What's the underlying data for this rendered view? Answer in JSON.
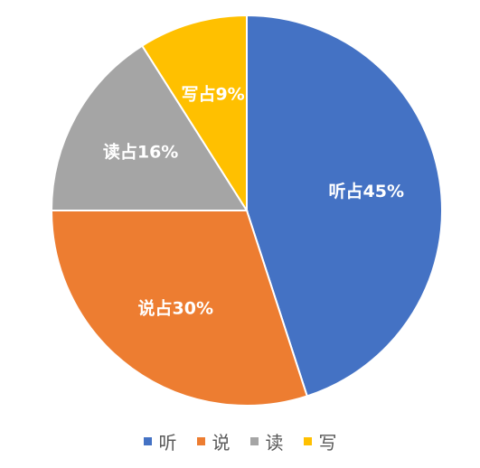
{
  "chart_data": {
    "type": "pie",
    "title": "",
    "series": [
      {
        "values": [
          45,
          30,
          16,
          9
        ]
      }
    ],
    "categories": [
      "听",
      "说",
      "读",
      "写"
    ],
    "slice_labels": [
      "听占45%",
      "说占30%",
      "读占16%",
      "写占9%"
    ],
    "colors": [
      "#4472C4",
      "#ED7D31",
      "#A5A5A5",
      "#FFC000"
    ],
    "start_angle": "12 o'clock",
    "direction": "clockwise",
    "legend_position": "bottom"
  }
}
